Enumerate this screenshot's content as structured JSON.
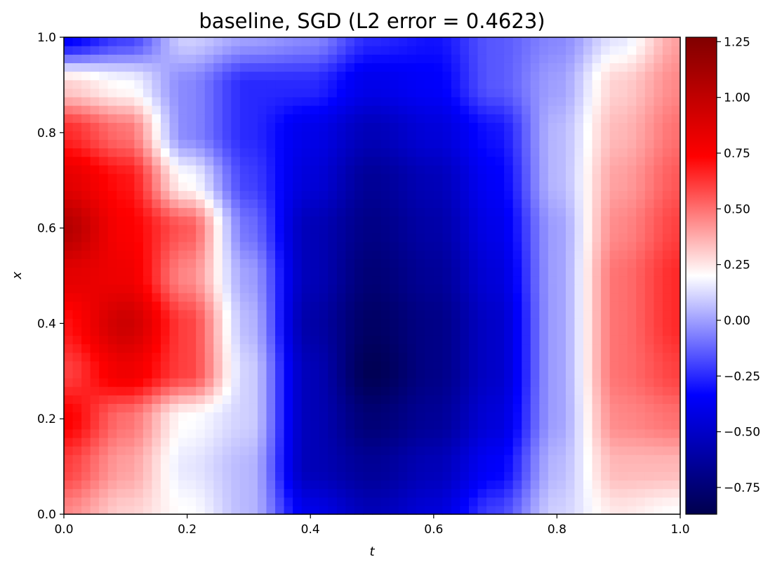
{
  "chart_data": {
    "type": "heatmap",
    "title": "baseline, SGD (L2 error = 0.4623)",
    "xlabel": "t",
    "ylabel": "x",
    "xlim": [
      0.0,
      1.0
    ],
    "ylim": [
      0.0,
      1.0
    ],
    "x_ticks": [
      "0.0",
      "0.2",
      "0.4",
      "0.6",
      "0.8",
      "1.0"
    ],
    "y_ticks": [
      "0.0",
      "0.2",
      "0.4",
      "0.6",
      "0.8",
      "1.0"
    ],
    "colorbar": {
      "range": [
        -0.87,
        1.27
      ],
      "ticks": [
        "1.25",
        "1.00",
        "0.75",
        "0.50",
        "0.25",
        "0.00",
        "−0.25",
        "−0.50",
        "−0.75"
      ],
      "tick_values": [
        1.25,
        1.0,
        0.75,
        0.5,
        0.25,
        0.0,
        -0.25,
        -0.5,
        -0.75
      ],
      "colormap": "seismic",
      "colormap_stops": [
        "#00004d",
        "#0000ff",
        "#ffffff",
        "#ff0000",
        "#800000"
      ]
    },
    "grid": false,
    "t_grid": [
      0.0,
      0.1,
      0.2,
      0.3,
      0.4,
      0.5,
      0.6,
      0.7,
      0.8,
      0.9,
      1.0
    ],
    "x_grid": [
      0.0,
      0.1,
      0.2,
      0.3,
      0.4,
      0.5,
      0.6,
      0.7,
      0.8,
      0.9,
      1.0
    ],
    "values": [
      [
        0.45,
        0.3,
        0.2,
        0.05,
        -0.4,
        -0.55,
        -0.45,
        -0.2,
        0.1,
        0.25,
        0.2
      ],
      [
        0.6,
        0.4,
        0.15,
        0.05,
        -0.55,
        -0.65,
        -0.55,
        -0.35,
        0.05,
        0.35,
        0.35
      ],
      [
        0.75,
        0.5,
        0.2,
        0.1,
        -0.55,
        -0.75,
        -0.65,
        -0.45,
        0.0,
        0.45,
        0.5
      ],
      [
        0.6,
        0.8,
        0.6,
        0.1,
        -0.55,
        -0.85,
        -0.7,
        -0.5,
        0.0,
        0.5,
        0.6
      ],
      [
        0.7,
        0.95,
        0.6,
        0.05,
        -0.6,
        -0.8,
        -0.7,
        -0.5,
        0.0,
        0.5,
        0.65
      ],
      [
        0.85,
        0.8,
        0.45,
        0.0,
        -0.55,
        -0.75,
        -0.65,
        -0.45,
        0.0,
        0.5,
        0.65
      ],
      [
        1.05,
        0.75,
        0.55,
        -0.1,
        -0.55,
        -0.7,
        -0.6,
        -0.4,
        0.0,
        0.45,
        0.6
      ],
      [
        0.85,
        0.7,
        0.2,
        -0.2,
        -0.45,
        -0.65,
        -0.55,
        -0.35,
        0.05,
        0.4,
        0.55
      ],
      [
        0.65,
        0.5,
        -0.05,
        -0.25,
        -0.4,
        -0.55,
        -0.45,
        -0.3,
        0.05,
        0.35,
        0.5
      ],
      [
        0.3,
        0.2,
        -0.05,
        -0.25,
        -0.25,
        -0.4,
        -0.35,
        -0.15,
        0.0,
        0.3,
        0.45
      ],
      [
        -0.35,
        -0.2,
        0.1,
        0.0,
        -0.05,
        -0.25,
        -0.3,
        -0.15,
        -0.05,
        0.15,
        0.4
      ]
    ]
  }
}
